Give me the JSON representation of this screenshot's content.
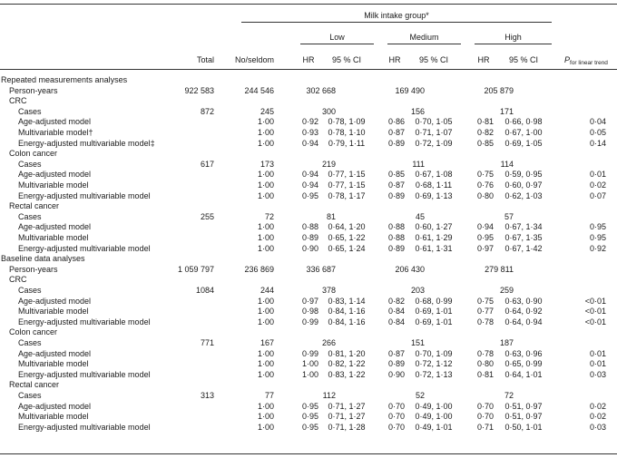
{
  "header": {
    "group_title": "Milk intake group*",
    "total": "Total",
    "noseldom": "No/seldom",
    "low": "Low",
    "medium": "Medium",
    "high": "High",
    "hr": "HR",
    "ci": "95 % CI",
    "p_main": "P",
    "p_sub": "for linear trend"
  },
  "sections": [
    {
      "title": "Repeated measurements analyses",
      "py_label": "Person-years",
      "py": [
        "922 583",
        "244 546",
        "302 668",
        "169 490",
        "205 879"
      ],
      "groups": [
        {
          "name": "CRC",
          "cases": [
            "872",
            "245",
            "300",
            "156",
            "171"
          ],
          "rows": [
            {
              "label": "Age-adjusted model",
              "ref": "1·00",
              "lhr": "0·92",
              "lci": "0·78, 1·09",
              "mhr": "0·86",
              "mci": "0·70, 1·05",
              "hhr": "0·81",
              "hci": "0·66, 0·98",
              "p": "0·04"
            },
            {
              "label": "Multivariable model†",
              "ref": "1·00",
              "lhr": "0·93",
              "lci": "0·78, 1·10",
              "mhr": "0·87",
              "mci": "0·71, 1·07",
              "hhr": "0·82",
              "hci": "0·67, 1·00",
              "p": "0·05"
            },
            {
              "label": "Energy-adjusted multivariable model‡",
              "ref": "1·00",
              "lhr": "0·94",
              "lci": "0·79, 1·11",
              "mhr": "0·89",
              "mci": "0·72, 1·09",
              "hhr": "0·85",
              "hci": "0·69, 1·05",
              "p": "0·14"
            }
          ]
        },
        {
          "name": "Colon cancer",
          "cases": [
            "617",
            "173",
            "219",
            "111",
            "114"
          ],
          "rows": [
            {
              "label": "Age-adjusted model",
              "ref": "1·00",
              "lhr": "0·94",
              "lci": "0·77, 1·15",
              "mhr": "0·85",
              "mci": "0·67, 1·08",
              "hhr": "0·75",
              "hci": "0·59, 0·95",
              "p": "0·01"
            },
            {
              "label": "Multivariable model",
              "ref": "1·00",
              "lhr": "0·94",
              "lci": "0·77, 1·15",
              "mhr": "0·87",
              "mci": "0·68, 1·11",
              "hhr": "0·76",
              "hci": "0·60, 0·97",
              "p": "0·02"
            },
            {
              "label": "Energy-adjusted multivariable model",
              "ref": "1·00",
              "lhr": "0·95",
              "lci": "0·78, 1·17",
              "mhr": "0·89",
              "mci": "0·69, 1·13",
              "hhr": "0·80",
              "hci": "0·62, 1·03",
              "p": "0·07"
            }
          ]
        },
        {
          "name": "Rectal cancer",
          "cases": [
            "255",
            "72",
            "81",
            "45",
            "57"
          ],
          "rows": [
            {
              "label": "Age-adjusted model",
              "ref": "1·00",
              "lhr": "0·88",
              "lci": "0·64, 1·20",
              "mhr": "0·88",
              "mci": "0·60, 1·27",
              "hhr": "0·94",
              "hci": "0·67, 1·34",
              "p": "0·95"
            },
            {
              "label": "Multivariable model",
              "ref": "1·00",
              "lhr": "0·89",
              "lci": "0·65, 1·22",
              "mhr": "0·88",
              "mci": "0·61, 1·29",
              "hhr": "0·95",
              "hci": "0·67, 1·35",
              "p": "0·95"
            },
            {
              "label": "Energy-adjusted multivariable model",
              "ref": "1·00",
              "lhr": "0·90",
              "lci": "0·65, 1·24",
              "mhr": "0·89",
              "mci": "0·61, 1·31",
              "hhr": "0·97",
              "hci": "0·67, 1·42",
              "p": "0·92"
            }
          ]
        }
      ]
    },
    {
      "title": "Baseline data analyses",
      "py_label": "Person-years",
      "py": [
        "1 059 797",
        "236 869",
        "336 687",
        "206 430",
        "279 811"
      ],
      "groups": [
        {
          "name": "CRC",
          "cases": [
            "1084",
            "244",
            "378",
            "203",
            "259"
          ],
          "rows": [
            {
              "label": "Age-adjusted model",
              "ref": "1·00",
              "lhr": "0·97",
              "lci": "0·83, 1·14",
              "mhr": "0·82",
              "mci": "0·68, 0·99",
              "hhr": "0·75",
              "hci": "0·63, 0·90",
              "p": "<0·01"
            },
            {
              "label": "Multivariable model",
              "ref": "1·00",
              "lhr": "0·98",
              "lci": "0·84, 1·16",
              "mhr": "0·84",
              "mci": "0·69, 1·01",
              "hhr": "0·77",
              "hci": "0·64, 0·92",
              "p": "<0·01"
            },
            {
              "label": "Energy-adjusted multivariable model",
              "ref": "1·00",
              "lhr": "0·99",
              "lci": "0·84, 1·16",
              "mhr": "0·84",
              "mci": "0·69, 1·01",
              "hhr": "0·78",
              "hci": "0·64, 0·94",
              "p": "<0·01"
            }
          ]
        },
        {
          "name": "Colon cancer",
          "cases": [
            "771",
            "167",
            "266",
            "151",
            "187"
          ],
          "rows": [
            {
              "label": "Age-adjusted model",
              "ref": "1·00",
              "lhr": "0·99",
              "lci": "0·81, 1·20",
              "mhr": "0·87",
              "mci": "0·70, 1·09",
              "hhr": "0·78",
              "hci": "0·63, 0·96",
              "p": "0·01"
            },
            {
              "label": "Multivariable model",
              "ref": "1·00",
              "lhr": "1·00",
              "lci": "0·82, 1·22",
              "mhr": "0·89",
              "mci": "0·72, 1·12",
              "hhr": "0·80",
              "hci": "0·65, 0·99",
              "p": "0·01"
            },
            {
              "label": "Energy-adjusted multivariable model",
              "ref": "1·00",
              "lhr": "1·00",
              "lci": "0·83, 1·22",
              "mhr": "0·90",
              "mci": "0·72, 1·13",
              "hhr": "0·81",
              "hci": "0·64, 1·01",
              "p": "0·03"
            }
          ]
        },
        {
          "name": "Rectal cancer",
          "cases": [
            "313",
            "77",
            "112",
            "52",
            "72"
          ],
          "rows": [
            {
              "label": "Age-adjusted model",
              "ref": "1·00",
              "lhr": "0·95",
              "lci": "0·71, 1·27",
              "mhr": "0·70",
              "mci": "0·49, 1·00",
              "hhr": "0·70",
              "hci": "0·51, 0·97",
              "p": "0·02"
            },
            {
              "label": "Multivariable model",
              "ref": "1·00",
              "lhr": "0·95",
              "lci": "0·71, 1·27",
              "mhr": "0·70",
              "mci": "0·49, 1·00",
              "hhr": "0·70",
              "hci": "0·51, 0·97",
              "p": "0·02"
            },
            {
              "label": "Energy-adjusted multivariable model",
              "ref": "1·00",
              "lhr": "0·95",
              "lci": "0·71, 1·28",
              "mhr": "0·70",
              "mci": "0·49, 1·01",
              "hhr": "0·71",
              "hci": "0·50, 1·01",
              "p": "0·03"
            }
          ]
        }
      ]
    }
  ]
}
